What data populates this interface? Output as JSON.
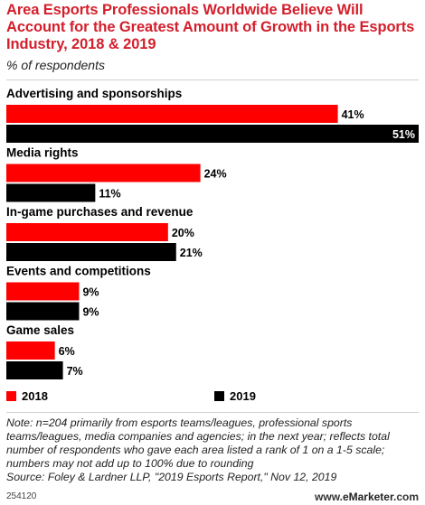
{
  "title": "Area Esports Professionals Worldwide Believe Will Account for the Greatest Amount of Growth in the Esports Industry, 2018 & 2019",
  "subtitle": "% of respondents",
  "chart_data": {
    "type": "bar",
    "orientation": "horizontal",
    "categories": [
      "Advertising and sponsorships",
      "Media rights",
      "In-game purchases and revenue",
      "Events and competitions",
      "Game sales"
    ],
    "series": [
      {
        "name": "2018",
        "color": "#ff0000",
        "values": [
          41,
          24,
          20,
          9,
          6
        ]
      },
      {
        "name": "2019",
        "color": "#000000",
        "values": [
          51,
          11,
          21,
          9,
          7
        ]
      }
    ],
    "value_suffix": "%",
    "xlim": [
      0,
      51
    ],
    "legend_placement": "bottom",
    "grid": false
  },
  "legend": [
    {
      "label": "2018",
      "color": "#ff0000"
    },
    {
      "label": "2019",
      "color": "#000000"
    }
  ],
  "note": "Note: n=204 primarily from esports teams/leagues, professional sports teams/leagues, media companies and agencies; in the next year; reflects total number of respondents who gave each area listed a rank of 1 on a 1-5 scale; numbers may not add up to 100% due to rounding",
  "source": "Source: Foley & Lardner LLP, \"2019 Esports Report,\" Nov 12, 2019",
  "footer_id": "254120",
  "brand": {
    "prefix": "www.",
    "name": "eMarketer",
    "suffix": ".com"
  }
}
